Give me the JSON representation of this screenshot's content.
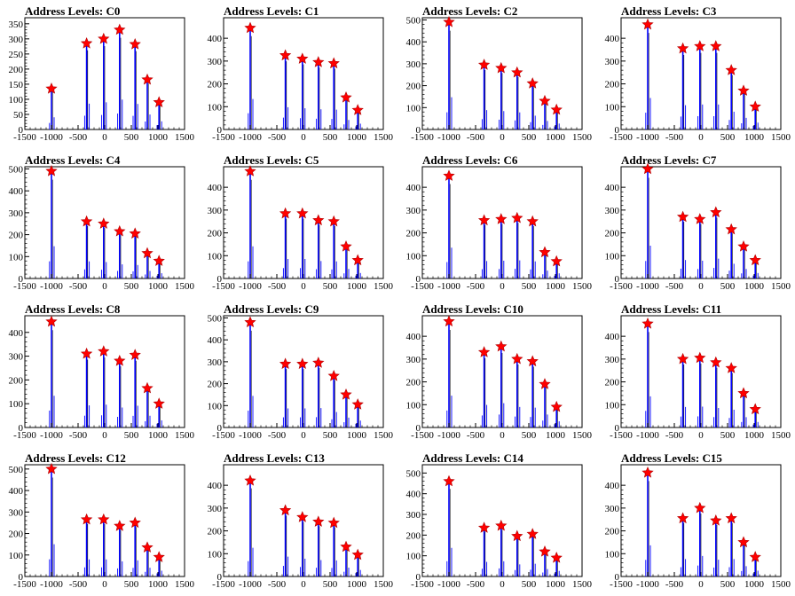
{
  "colors": {
    "hist": "#0000ff",
    "marker": "#ff0000",
    "outline": "#000000"
  },
  "title_prefix": "Address Levels: ",
  "chart_data": [
    {
      "title": "Address Levels: C0",
      "type": "bar",
      "xlim": [
        -1500,
        1500
      ],
      "ylim": [
        0,
        370
      ],
      "yticks": [
        0,
        50,
        100,
        150,
        200,
        250,
        300,
        350
      ],
      "xticks": [
        -1500,
        -1000,
        -500,
        0,
        500,
        1000,
        1500
      ],
      "peaks": [
        {
          "x": -1000,
          "y": 135
        },
        {
          "x": -340,
          "y": 285
        },
        {
          "x": -20,
          "y": 300
        },
        {
          "x": 280,
          "y": 330
        },
        {
          "x": 570,
          "y": 282
        },
        {
          "x": 800,
          "y": 165
        },
        {
          "x": 1020,
          "y": 90
        }
      ]
    },
    {
      "title": "Address Levels: C1",
      "type": "bar",
      "xlim": [
        -1500,
        1500
      ],
      "ylim": [
        0,
        490
      ],
      "yticks": [
        0,
        100,
        200,
        300,
        400
      ],
      "xticks": [
        -1500,
        -1000,
        -500,
        0,
        500,
        1000,
        1500
      ],
      "peaks": [
        {
          "x": -1000,
          "y": 445
        },
        {
          "x": -340,
          "y": 325
        },
        {
          "x": -20,
          "y": 310
        },
        {
          "x": 280,
          "y": 295
        },
        {
          "x": 570,
          "y": 290
        },
        {
          "x": 800,
          "y": 140
        },
        {
          "x": 1020,
          "y": 85
        }
      ]
    },
    {
      "title": "Address Levels: C2",
      "type": "bar",
      "xlim": [
        -1500,
        1500
      ],
      "ylim": [
        0,
        510
      ],
      "yticks": [
        0,
        100,
        200,
        300,
        400,
        500
      ],
      "xticks": [
        -1500,
        -1000,
        -500,
        0,
        500,
        1000,
        1500
      ],
      "peaks": [
        {
          "x": -1000,
          "y": 490
        },
        {
          "x": -340,
          "y": 295
        },
        {
          "x": -20,
          "y": 280
        },
        {
          "x": 280,
          "y": 260
        },
        {
          "x": 570,
          "y": 210
        },
        {
          "x": 800,
          "y": 130
        },
        {
          "x": 1020,
          "y": 90
        }
      ]
    },
    {
      "title": "Address Levels: C3",
      "type": "bar",
      "xlim": [
        -1500,
        1500
      ],
      "ylim": [
        0,
        490
      ],
      "yticks": [
        0,
        100,
        200,
        300,
        400
      ],
      "xticks": [
        -1500,
        -1000,
        -500,
        0,
        500,
        1000,
        1500
      ],
      "peaks": [
        {
          "x": -1000,
          "y": 460
        },
        {
          "x": -340,
          "y": 355
        },
        {
          "x": -20,
          "y": 365
        },
        {
          "x": 280,
          "y": 365
        },
        {
          "x": 570,
          "y": 260
        },
        {
          "x": 800,
          "y": 170
        },
        {
          "x": 1020,
          "y": 100
        }
      ]
    },
    {
      "title": "Address Levels: C4",
      "type": "bar",
      "xlim": [
        -1500,
        1500
      ],
      "ylim": [
        0,
        510
      ],
      "yticks": [
        0,
        100,
        200,
        300,
        400,
        500
      ],
      "xticks": [
        -1500,
        -1000,
        -500,
        0,
        500,
        1000,
        1500
      ],
      "peaks": [
        {
          "x": -1000,
          "y": 490
        },
        {
          "x": -340,
          "y": 260
        },
        {
          "x": -20,
          "y": 250
        },
        {
          "x": 280,
          "y": 215
        },
        {
          "x": 570,
          "y": 205
        },
        {
          "x": 800,
          "y": 115
        },
        {
          "x": 1020,
          "y": 80
        }
      ]
    },
    {
      "title": "Address Levels: C5",
      "type": "bar",
      "xlim": [
        -1500,
        1500
      ],
      "ylim": [
        0,
        490
      ],
      "yticks": [
        0,
        100,
        200,
        300,
        400
      ],
      "xticks": [
        -1500,
        -1000,
        -500,
        0,
        500,
        1000,
        1500
      ],
      "peaks": [
        {
          "x": -1000,
          "y": 470
        },
        {
          "x": -340,
          "y": 285
        },
        {
          "x": -20,
          "y": 285
        },
        {
          "x": 280,
          "y": 255
        },
        {
          "x": 570,
          "y": 250
        },
        {
          "x": 800,
          "y": 140
        },
        {
          "x": 1020,
          "y": 80
        }
      ]
    },
    {
      "title": "Address Levels: C6",
      "type": "bar",
      "xlim": [
        -1500,
        1500
      ],
      "ylim": [
        0,
        490
      ],
      "yticks": [
        0,
        100,
        200,
        300,
        400
      ],
      "xticks": [
        -1500,
        -1000,
        -500,
        0,
        500,
        1000,
        1500
      ],
      "peaks": [
        {
          "x": -1000,
          "y": 450
        },
        {
          "x": -340,
          "y": 255
        },
        {
          "x": -20,
          "y": 260
        },
        {
          "x": 280,
          "y": 265
        },
        {
          "x": 570,
          "y": 250
        },
        {
          "x": 800,
          "y": 115
        },
        {
          "x": 1020,
          "y": 75
        }
      ]
    },
    {
      "title": "Address Levels: C7",
      "type": "bar",
      "xlim": [
        -1500,
        1500
      ],
      "ylim": [
        0,
        490
      ],
      "yticks": [
        0,
        100,
        200,
        300,
        400
      ],
      "xticks": [
        -1500,
        -1000,
        -500,
        0,
        500,
        1000,
        1500
      ],
      "peaks": [
        {
          "x": -1000,
          "y": 480
        },
        {
          "x": -340,
          "y": 270
        },
        {
          "x": -20,
          "y": 260
        },
        {
          "x": 280,
          "y": 290
        },
        {
          "x": 570,
          "y": 215
        },
        {
          "x": 800,
          "y": 140
        },
        {
          "x": 1020,
          "y": 80
        }
      ]
    },
    {
      "title": "Address Levels: C8",
      "type": "bar",
      "xlim": [
        -1500,
        1500
      ],
      "ylim": [
        0,
        470
      ],
      "yticks": [
        0,
        100,
        200,
        300,
        400
      ],
      "xticks": [
        -1500,
        -1000,
        -500,
        0,
        500,
        1000,
        1500
      ],
      "peaks": [
        {
          "x": -1000,
          "y": 445
        },
        {
          "x": -340,
          "y": 310
        },
        {
          "x": -20,
          "y": 320
        },
        {
          "x": 280,
          "y": 280
        },
        {
          "x": 570,
          "y": 305
        },
        {
          "x": 800,
          "y": 165
        },
        {
          "x": 1020,
          "y": 100
        }
      ]
    },
    {
      "title": "Address Levels: C9",
      "type": "bar",
      "xlim": [
        -1500,
        1500
      ],
      "ylim": [
        0,
        510
      ],
      "yticks": [
        0,
        100,
        200,
        300,
        400,
        500
      ],
      "xticks": [
        -1500,
        -1000,
        -500,
        0,
        500,
        1000,
        1500
      ],
      "peaks": [
        {
          "x": -1000,
          "y": 480
        },
        {
          "x": -340,
          "y": 290
        },
        {
          "x": -20,
          "y": 290
        },
        {
          "x": 280,
          "y": 295
        },
        {
          "x": 570,
          "y": 235
        },
        {
          "x": 800,
          "y": 150
        },
        {
          "x": 1020,
          "y": 105
        }
      ]
    },
    {
      "title": "Address Levels: C10",
      "type": "bar",
      "xlim": [
        -1500,
        1500
      ],
      "ylim": [
        0,
        490
      ],
      "yticks": [
        0,
        100,
        200,
        300,
        400
      ],
      "xticks": [
        -1500,
        -1000,
        -500,
        0,
        500,
        1000,
        1500
      ],
      "peaks": [
        {
          "x": -1000,
          "y": 465
        },
        {
          "x": -340,
          "y": 330
        },
        {
          "x": -20,
          "y": 355
        },
        {
          "x": 280,
          "y": 300
        },
        {
          "x": 570,
          "y": 290
        },
        {
          "x": 800,
          "y": 190
        },
        {
          "x": 1020,
          "y": 90
        }
      ]
    },
    {
      "title": "Address Levels: C11",
      "type": "bar",
      "xlim": [
        -1500,
        1500
      ],
      "ylim": [
        0,
        490
      ],
      "yticks": [
        0,
        100,
        200,
        300,
        400
      ],
      "xticks": [
        -1500,
        -1000,
        -500,
        0,
        500,
        1000,
        1500
      ],
      "peaks": [
        {
          "x": -1000,
          "y": 455
        },
        {
          "x": -340,
          "y": 300
        },
        {
          "x": -20,
          "y": 305
        },
        {
          "x": 280,
          "y": 285
        },
        {
          "x": 570,
          "y": 260
        },
        {
          "x": 800,
          "y": 150
        },
        {
          "x": 1020,
          "y": 80
        }
      ]
    },
    {
      "title": "Address Levels: C12",
      "type": "bar",
      "xlim": [
        -1500,
        1500
      ],
      "ylim": [
        0,
        520
      ],
      "yticks": [
        0,
        100,
        200,
        300,
        400,
        500
      ],
      "xticks": [
        -1500,
        -1000,
        -500,
        0,
        500,
        1000,
        1500
      ],
      "peaks": [
        {
          "x": -1000,
          "y": 500
        },
        {
          "x": -340,
          "y": 265
        },
        {
          "x": -20,
          "y": 265
        },
        {
          "x": 280,
          "y": 235
        },
        {
          "x": 570,
          "y": 250
        },
        {
          "x": 800,
          "y": 135
        },
        {
          "x": 1020,
          "y": 90
        }
      ]
    },
    {
      "title": "Address Levels: C13",
      "type": "bar",
      "xlim": [
        -1500,
        1500
      ],
      "ylim": [
        0,
        490
      ],
      "yticks": [
        0,
        100,
        200,
        300,
        400
      ],
      "xticks": [
        -1500,
        -1000,
        -500,
        0,
        500,
        1000,
        1500
      ],
      "peaks": [
        {
          "x": -1000,
          "y": 420
        },
        {
          "x": -340,
          "y": 290
        },
        {
          "x": -20,
          "y": 260
        },
        {
          "x": 280,
          "y": 240
        },
        {
          "x": 570,
          "y": 235
        },
        {
          "x": 800,
          "y": 130
        },
        {
          "x": 1020,
          "y": 95
        }
      ]
    },
    {
      "title": "Address Levels: C14",
      "type": "bar",
      "xlim": [
        -1500,
        1500
      ],
      "ylim": [
        0,
        540
      ],
      "yticks": [
        0,
        100,
        200,
        300,
        400,
        500
      ],
      "xticks": [
        -1500,
        -1000,
        -500,
        0,
        500,
        1000,
        1500
      ],
      "peaks": [
        {
          "x": -1000,
          "y": 460
        },
        {
          "x": -340,
          "y": 235
        },
        {
          "x": -20,
          "y": 245
        },
        {
          "x": 280,
          "y": 195
        },
        {
          "x": 570,
          "y": 205
        },
        {
          "x": 800,
          "y": 120
        },
        {
          "x": 1020,
          "y": 90
        }
      ]
    },
    {
      "title": "Address Levels: C15",
      "type": "bar",
      "xlim": [
        -1500,
        1500
      ],
      "ylim": [
        0,
        490
      ],
      "yticks": [
        0,
        100,
        200,
        300,
        400
      ],
      "xticks": [
        -1500,
        -1000,
        -500,
        0,
        500,
        1000,
        1500
      ],
      "peaks": [
        {
          "x": -1000,
          "y": 455
        },
        {
          "x": -340,
          "y": 255
        },
        {
          "x": -20,
          "y": 300
        },
        {
          "x": 280,
          "y": 245
        },
        {
          "x": 570,
          "y": 255
        },
        {
          "x": 800,
          "y": 150
        },
        {
          "x": 1020,
          "y": 85
        }
      ]
    }
  ]
}
